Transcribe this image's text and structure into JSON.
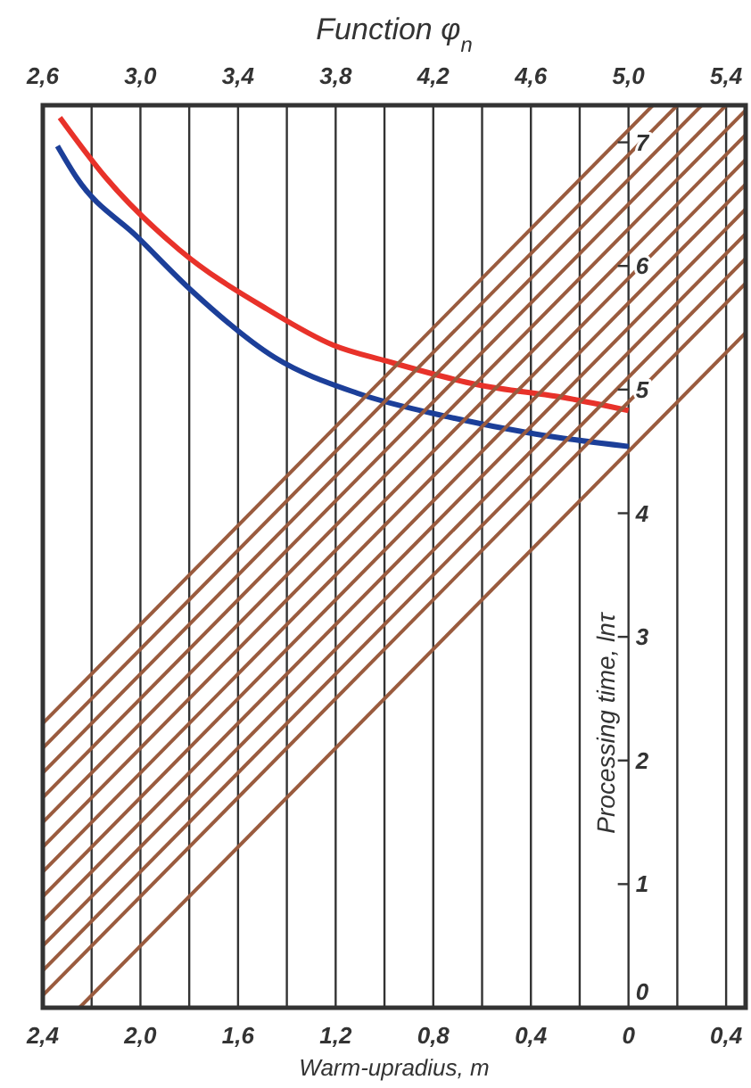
{
  "chart_data": {
    "type": "line",
    "title": "Function φ$_{n}$",
    "xlabel": "Warm-upradius, m",
    "ylabel": "Processing time, lnτ",
    "xlim": [
      2.4,
      -0.48
    ],
    "xticks": [
      {
        "value": 2.4,
        "label": "2,4"
      },
      {
        "value": 2.2,
        "label": null
      },
      {
        "value": 2.0,
        "label": "2,0"
      },
      {
        "value": 1.8,
        "label": null
      },
      {
        "value": 1.6,
        "label": "1,6"
      },
      {
        "value": 1.4,
        "label": null
      },
      {
        "value": 1.2,
        "label": "1,2"
      },
      {
        "value": 1.0,
        "label": null
      },
      {
        "value": 0.8,
        "label": "0,8"
      },
      {
        "value": 0.6,
        "label": null
      },
      {
        "value": 0.4,
        "label": "0,4"
      },
      {
        "value": 0.2,
        "label": null
      },
      {
        "value": 0,
        "label": "0"
      },
      {
        "value": -0.2,
        "label": null
      },
      {
        "value": -0.4,
        "label": "0,4"
      }
    ],
    "x2lim": [
      2.6,
      5.48
    ],
    "x2ticks": [
      {
        "value": 2.6,
        "label": "2,6"
      },
      {
        "value": 3.0,
        "label": "3,0"
      },
      {
        "value": 3.4,
        "label": "3,4"
      },
      {
        "value": 3.8,
        "label": "3,8"
      },
      {
        "value": 4.2,
        "label": "4,2"
      },
      {
        "value": 4.6,
        "label": "4,6"
      },
      {
        "value": 5.0,
        "label": "5,0"
      },
      {
        "value": 5.4,
        "label": "5,4"
      }
    ],
    "ylim": [
      0,
      7.3
    ],
    "yticks": [
      0,
      1,
      2,
      3,
      4,
      5,
      6,
      7
    ],
    "grid": "x",
    "series": [
      {
        "color": "#e8322a",
        "x": [
          2.33,
          2.14,
          1.84,
          1.48,
          1.21,
          0.99,
          0.62,
          0.25,
          0
        ],
        "values": [
          7.2,
          6.71,
          6.13,
          5.65,
          5.36,
          5.23,
          5.04,
          4.93,
          4.83
        ]
      },
      {
        "color": "#1c3f99",
        "x": [
          2.34,
          2.26,
          2.01,
          1.79,
          1.45,
          1.11,
          0.74,
          0.38,
          0
        ],
        "values": [
          6.97,
          6.71,
          6.23,
          5.8,
          5.26,
          4.97,
          4.78,
          4.64,
          4.54
        ]
      },
      {
        "color": "#9a5b3e",
        "x": [
          2.4,
          -0.1
        ],
        "values": [
          2.3,
          7.3
        ]
      },
      {
        "color": "#9a5b3e",
        "x": [
          2.4,
          -0.2
        ],
        "values": [
          2.1,
          7.3
        ]
      },
      {
        "color": "#9a5b3e",
        "x": [
          2.4,
          -0.3
        ],
        "values": [
          1.9,
          7.3
        ]
      },
      {
        "color": "#9a5b3e",
        "x": [
          2.4,
          -0.4
        ],
        "values": [
          1.7,
          7.3
        ]
      },
      {
        "color": "#9a5b3e",
        "x": [
          2.4,
          -0.48
        ],
        "values": [
          1.5,
          7.26
        ]
      },
      {
        "color": "#9a5b3e",
        "x": [
          2.4,
          -0.48
        ],
        "values": [
          1.3,
          7.06
        ]
      },
      {
        "color": "#9a5b3e",
        "x": [
          2.4,
          -0.48
        ],
        "values": [
          1.1,
          6.86
        ]
      },
      {
        "color": "#9a5b3e",
        "x": [
          2.4,
          -0.48
        ],
        "values": [
          0.9,
          6.66
        ]
      },
      {
        "color": "#9a5b3e",
        "x": [
          2.4,
          -0.48
        ],
        "values": [
          0.7,
          6.46
        ]
      },
      {
        "color": "#9a5b3e",
        "x": [
          2.4,
          -0.48
        ],
        "values": [
          0.5,
          6.26
        ]
      },
      {
        "color": "#9a5b3e",
        "x": [
          2.4,
          -0.48
        ],
        "values": [
          0.3,
          6.06
        ]
      },
      {
        "color": "#9a5b3e",
        "x": [
          2.4,
          -0.48
        ],
        "values": [
          0.1,
          5.86
        ]
      },
      {
        "color": "#9a5b3e",
        "x": [
          2.25,
          -0.48
        ],
        "values": [
          0,
          5.46
        ]
      }
    ]
  }
}
